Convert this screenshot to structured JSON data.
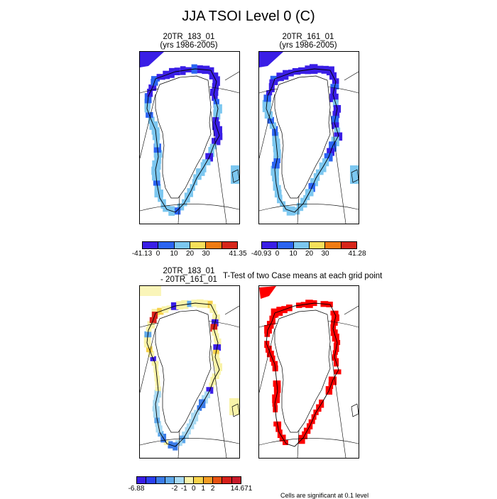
{
  "title": "JJA TSOI Level 0 (C)",
  "panels": {
    "p1": {
      "line1": "20TR_183_01",
      "line2": "(yrs 1986-2005)"
    },
    "p2": {
      "line1": "20TR_161_01",
      "line2": "(yrs 1986-2005)"
    },
    "p3": {
      "line1": "20TR_183_01",
      "line2": "- 20TR_161_01"
    },
    "p4": {
      "title": "T-Test of two Case means at each grid point"
    }
  },
  "colorbars": {
    "cb1": {
      "labels": [
        "-41.13",
        "0",
        "10",
        "20",
        "30",
        "41.35"
      ],
      "colors": [
        "#3a1ee6",
        "#2b64f2",
        "#7cc7f0",
        "#f6e05a",
        "#f07b12",
        "#d7261a"
      ]
    },
    "cb2": {
      "labels": [
        "-40.93",
        "0",
        "10",
        "20",
        "30",
        "41.28"
      ],
      "colors": [
        "#3a1ee6",
        "#2b64f2",
        "#7cc7f0",
        "#f6e05a",
        "#f07b12",
        "#d7261a"
      ]
    },
    "cb3": {
      "labels": [
        "-6.88",
        "-2",
        "-1",
        "0",
        "1",
        "2",
        "14.671"
      ],
      "colors": [
        "#3a1ee6",
        "#2b3ff0",
        "#3a7be8",
        "#5ea8ea",
        "#a8daf3",
        "#f9f3a8",
        "#f7d24b",
        "#f39c25",
        "#e85313",
        "#d7201a",
        "#c81a2a"
      ]
    }
  },
  "footnote": "Cells are significant at 0.1 level",
  "colors": {
    "ttest_significant": "#ff0000"
  },
  "chart_data": [
    {
      "type": "heatmap",
      "title": "20TR_183_01 (yrs 1986-2005)",
      "colorbar_range": [
        -41.13,
        41.35
      ],
      "colorbar_ticks": [
        0,
        10,
        20,
        30
      ],
      "region": "Greenland"
    },
    {
      "type": "heatmap",
      "title": "20TR_161_01 (yrs 1986-2005)",
      "colorbar_range": [
        -40.93,
        41.28
      ],
      "colorbar_ticks": [
        0,
        10,
        20,
        30
      ],
      "region": "Greenland"
    },
    {
      "type": "heatmap",
      "title": "20TR_183_01 - 20TR_161_01",
      "colorbar_range": [
        -6.88,
        14.671
      ],
      "colorbar_ticks": [
        -2,
        -1,
        0,
        1,
        2
      ],
      "region": "Greenland"
    },
    {
      "type": "heatmap",
      "title": "T-Test of two Case means at each grid point",
      "significance_level": 0.1,
      "region": "Greenland"
    }
  ]
}
